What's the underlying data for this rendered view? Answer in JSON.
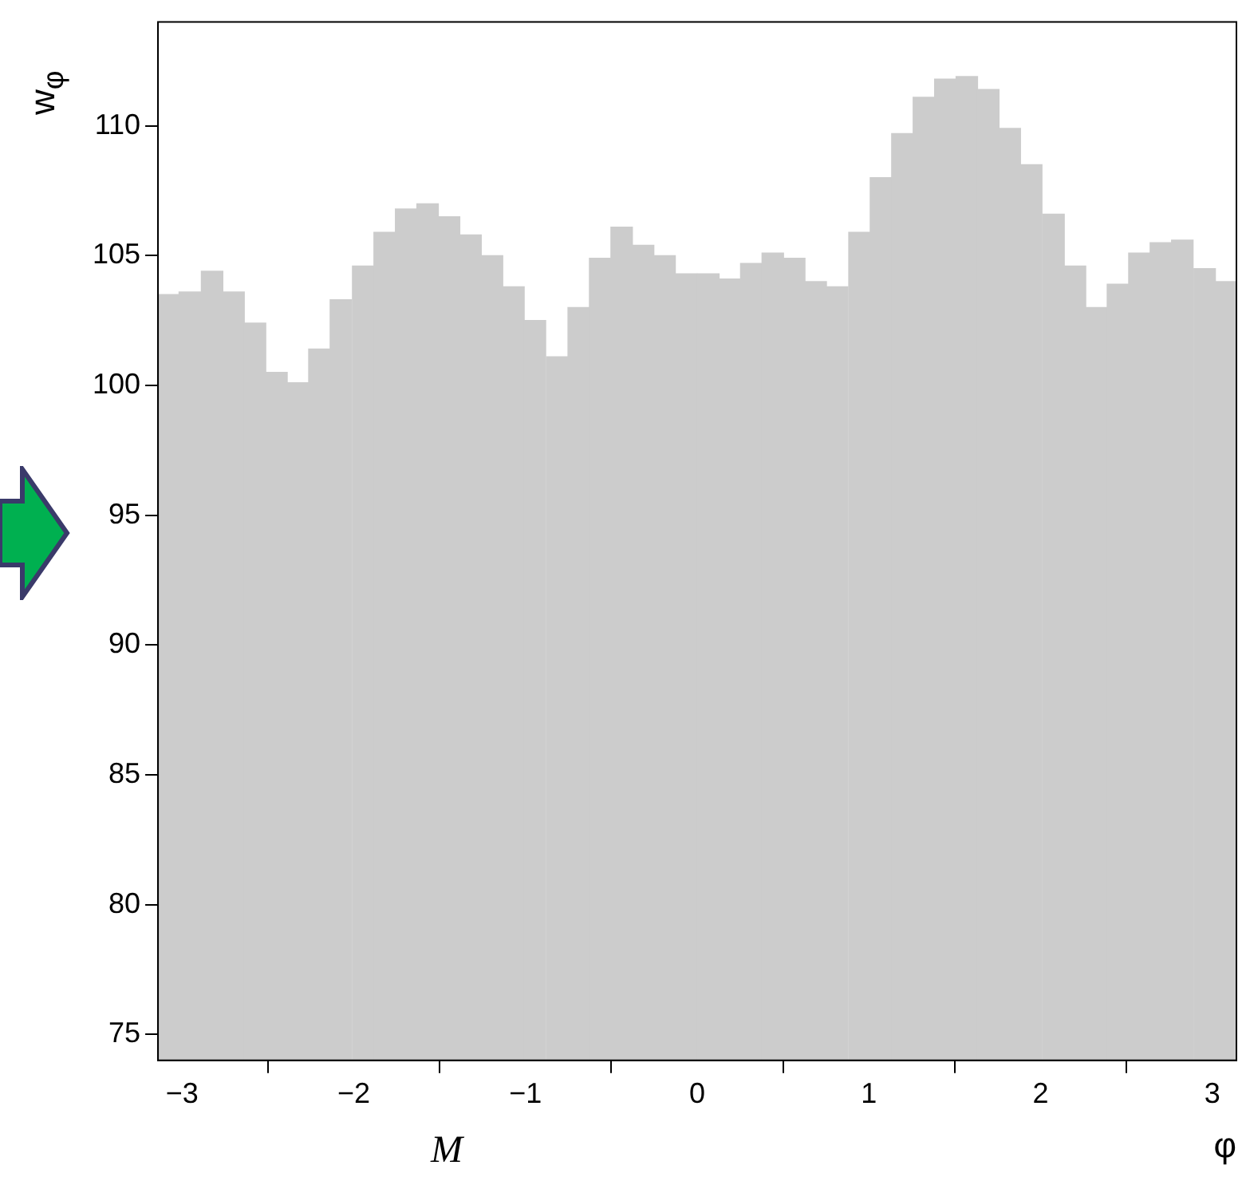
{
  "chart_data": {
    "type": "histogram",
    "bins": [
      -3.14,
      -3.02,
      -2.89,
      -2.76,
      -2.64,
      -2.51,
      -2.39,
      -2.26,
      -2.14,
      -2.01,
      -1.88,
      -1.76,
      -1.63,
      -1.51,
      -1.38,
      -1.26,
      -1.13,
      -1.01,
      -0.88,
      -0.75,
      -0.63,
      -0.5,
      -0.38,
      -0.25,
      -0.13,
      0,
      0.13,
      0.25,
      0.38,
      0.5,
      0.63,
      0.75,
      0.88,
      1.01,
      1.13,
      1.26,
      1.38,
      1.51,
      1.63,
      1.76,
      1.88,
      2.01,
      2.14,
      2.26,
      2.39,
      2.51,
      2.64,
      2.76,
      2.89,
      3.02,
      3.14
    ],
    "values": [
      103.5,
      103.6,
      104.4,
      103.6,
      102.4,
      100.5,
      100.1,
      101.4,
      103.3,
      104.6,
      105.9,
      106.8,
      107.0,
      106.5,
      105.8,
      105.0,
      103.8,
      102.5,
      101.1,
      103.0,
      104.9,
      106.1,
      105.4,
      105.0,
      104.3,
      104.3,
      104.1,
      104.7,
      105.1,
      104.9,
      104.0,
      103.8,
      105.9,
      108.0,
      109.7,
      111.1,
      111.8,
      111.9,
      111.4,
      109.9,
      108.5,
      106.6,
      104.6,
      103.0,
      103.9,
      105.1,
      105.5,
      105.6,
      104.5,
      104.0
    ],
    "color": "#cccccc",
    "xlabel": "φ",
    "ylabel": "w$_{φ}$",
    "annotations": [
      "M"
    ],
    "xlim": [
      -3.14,
      3.14
    ],
    "xticks": [
      {
        "value": -3,
        "label": "−3"
      },
      {
        "value": -2,
        "label": "−2"
      },
      {
        "value": -1,
        "label": "−1"
      },
      0,
      1,
      2,
      3
    ],
    "ylim": [
      74,
      114
    ],
    "yticks": [
      75,
      80,
      85,
      90,
      95,
      100,
      105,
      110
    ],
    "grid": false,
    "legend": false
  }
}
